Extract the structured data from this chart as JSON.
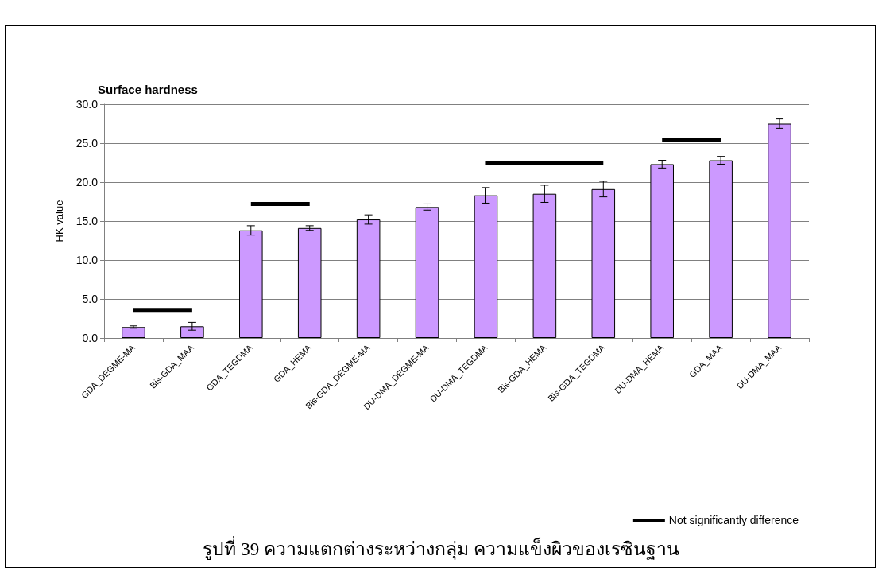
{
  "chart_data": {
    "type": "bar",
    "title": "Surface hardness",
    "ylabel": "HK value",
    "categories": [
      "GDA_DEGME-MA",
      "Bis-GDA_MAA",
      "GDA_TEGDMA",
      "GDA_HEMA",
      "Bis-GDA_DEGME-MA",
      "DU-DMA_DEGME-MA",
      "DU-DMA_TEGDMA",
      "Bis-GDA_HEMA",
      "Bis-GDA_TEGDMA",
      "DU-DMA_HEMA",
      "GDA_MAA",
      "DU-DMA_MAA"
    ],
    "series": [
      {
        "color": "#cc99ff",
        "values": [
          1.4,
          1.5,
          13.8,
          14.1,
          15.2,
          16.8,
          18.3,
          18.5,
          19.1,
          22.3,
          22.8,
          27.5
        ],
        "errors": [
          0.15,
          0.5,
          0.6,
          0.3,
          0.6,
          0.4,
          1.0,
          1.1,
          1.0,
          0.5,
          0.5,
          0.6
        ]
      },
      {
        "type": "line",
        "name": "Not significantly difference",
        "color": "#000000",
        "x": [
          "GDA_DEGME-MA",
          "Bis-GDA_MAA"
        ],
        "values": [
          3.6,
          3.6
        ]
      },
      {
        "type": "line",
        "color": "#000000",
        "x": [
          "GDA_TEGDMA",
          "GDA_HEMA"
        ],
        "values": [
          17.2,
          17.2
        ]
      },
      {
        "type": "line",
        "color": "#000000",
        "x": [
          "DU-DMA_TEGDMA",
          "Bis-GDA_HEMA",
          "Bis-GDA_TEGDMA"
        ],
        "values": [
          22.4,
          22.4,
          22.4
        ]
      },
      {
        "type": "line",
        "color": "#000000",
        "x": [
          "DU-DMA_HEMA",
          "GDA_MAA"
        ],
        "values": [
          25.4,
          25.4
        ]
      }
    ],
    "ylim": [
      0,
      30
    ],
    "yticks": [
      {
        "value": 0,
        "label": "0.0"
      },
      {
        "value": 5,
        "label": "5.0"
      },
      {
        "value": 10,
        "label": "10.0"
      },
      {
        "value": 15,
        "label": "15.0"
      },
      {
        "value": 20,
        "label": "20.0"
      },
      {
        "value": 25,
        "label": "25.0"
      },
      {
        "value": 30,
        "label": "30.0"
      }
    ],
    "grid": "y",
    "legend": "bottom right",
    "marker": "none",
    "line_style": "solid",
    "annotations": [
      "รูปที่ 39 ความแตกต่างระหว่างกลุ่ม ความแข็งผิวของเรซินฐาน"
    ]
  }
}
